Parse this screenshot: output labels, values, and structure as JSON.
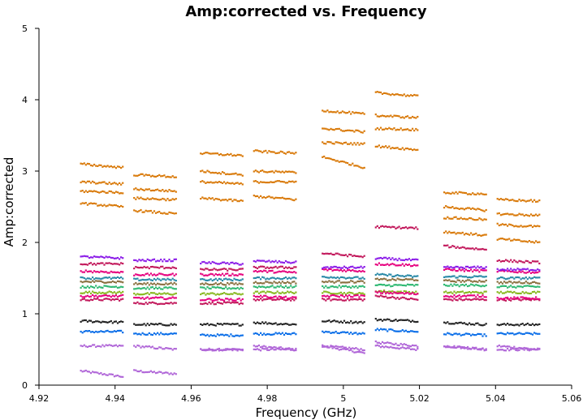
{
  "chart_data": {
    "type": "scatter",
    "title": "Amp:corrected vs. Frequency",
    "xlabel": "Frequency (GHz)",
    "ylabel": "Amp:corrected",
    "xlim": [
      4.92,
      5.06
    ],
    "ylim": [
      0,
      5
    ],
    "xticks": [
      4.92,
      4.94,
      4.96,
      4.98,
      5.0,
      5.02,
      5.04,
      5.06
    ],
    "xtick_labels": [
      "4.92",
      "4.94",
      "4.96",
      "4.98",
      "5",
      "5.02",
      "5.04",
      "5.06"
    ],
    "yticks": [
      0,
      1,
      2,
      3,
      4,
      5
    ],
    "ytick_labels": [
      "0",
      "1",
      "2",
      "3",
      "4",
      "5"
    ],
    "grid": false,
    "spectral_windows": [
      {
        "x_range": [
          4.931,
          4.942
        ]
      },
      {
        "x_range": [
          4.945,
          4.956
        ]
      },
      {
        "x_range": [
          4.9625,
          4.9735
        ]
      },
      {
        "x_range": [
          4.9765,
          4.9875
        ]
      },
      {
        "x_range": [
          4.9945,
          5.0055
        ]
      },
      {
        "x_range": [
          5.0085,
          5.0195
        ]
      },
      {
        "x_range": [
          5.0265,
          5.0375
        ]
      },
      {
        "x_range": [
          5.0405,
          5.0515
        ]
      }
    ],
    "series": [
      {
        "color": "#b066d8",
        "y_levels": [
          [
            0.2,
            0.12
          ],
          [
            0.2,
            0.16
          ],
          [
            0.5,
            0.5
          ],
          [
            0.55,
            0.5
          ],
          [
            0.55,
            0.45
          ],
          [
            0.55,
            0.5
          ],
          [
            0.55,
            0.5
          ],
          [
            0.55,
            0.5
          ]
        ]
      },
      {
        "color": "#b066d8",
        "y_levels": [
          [
            0.55,
            0.55
          ],
          [
            0.55,
            0.5
          ],
          [
            0.5,
            0.5
          ],
          [
            0.5,
            0.5
          ],
          [
            0.55,
            0.5
          ],
          [
            0.6,
            0.55
          ],
          [
            0.55,
            0.5
          ],
          [
            0.5,
            0.5
          ]
        ]
      },
      {
        "color": "#0a6ee8",
        "y_levels": [
          [
            0.75,
            0.75
          ],
          [
            0.72,
            0.72
          ],
          [
            0.7,
            0.7
          ],
          [
            0.72,
            0.72
          ],
          [
            0.75,
            0.72
          ],
          [
            0.78,
            0.75
          ],
          [
            0.72,
            0.7
          ],
          [
            0.72,
            0.72
          ]
        ]
      },
      {
        "color": "#222222",
        "y_levels": [
          [
            0.9,
            0.88
          ],
          [
            0.85,
            0.85
          ],
          [
            0.85,
            0.85
          ],
          [
            0.88,
            0.85
          ],
          [
            0.9,
            0.88
          ],
          [
            0.92,
            0.9
          ],
          [
            0.88,
            0.85
          ],
          [
            0.85,
            0.85
          ]
        ]
      },
      {
        "color": "#c2185b",
        "y_levels": [
          [
            1.2,
            1.2
          ],
          [
            1.15,
            1.15
          ],
          [
            1.15,
            1.15
          ],
          [
            1.2,
            1.2
          ],
          [
            1.2,
            1.2
          ],
          [
            1.25,
            1.2
          ],
          [
            1.2,
            1.2
          ],
          [
            1.2,
            1.2
          ]
        ]
      },
      {
        "color": "#88b820",
        "y_levels": [
          [
            1.3,
            1.3
          ],
          [
            1.28,
            1.28
          ],
          [
            1.28,
            1.28
          ],
          [
            1.3,
            1.3
          ],
          [
            1.3,
            1.28
          ],
          [
            1.32,
            1.3
          ],
          [
            1.3,
            1.3
          ],
          [
            1.3,
            1.3
          ]
        ]
      },
      {
        "color": "#2eb872",
        "y_levels": [
          [
            1.38,
            1.38
          ],
          [
            1.36,
            1.36
          ],
          [
            1.36,
            1.36
          ],
          [
            1.38,
            1.38
          ],
          [
            1.38,
            1.38
          ],
          [
            1.4,
            1.4
          ],
          [
            1.4,
            1.4
          ],
          [
            1.38,
            1.38
          ]
        ]
      },
      {
        "color": "#8a7040",
        "y_levels": [
          [
            1.45,
            1.45
          ],
          [
            1.42,
            1.42
          ],
          [
            1.42,
            1.42
          ],
          [
            1.44,
            1.44
          ],
          [
            1.45,
            1.45
          ],
          [
            1.48,
            1.48
          ],
          [
            1.46,
            1.46
          ],
          [
            1.44,
            1.44
          ]
        ]
      },
      {
        "color": "#2a8aa8",
        "y_levels": [
          [
            1.5,
            1.5
          ],
          [
            1.48,
            1.48
          ],
          [
            1.48,
            1.48
          ],
          [
            1.5,
            1.5
          ],
          [
            1.52,
            1.5
          ],
          [
            1.55,
            1.52
          ],
          [
            1.52,
            1.52
          ],
          [
            1.5,
            1.5
          ]
        ]
      },
      {
        "color": "#e6007e",
        "y_levels": [
          [
            1.6,
            1.58
          ],
          [
            1.55,
            1.55
          ],
          [
            1.55,
            1.55
          ],
          [
            1.6,
            1.58
          ],
          [
            1.62,
            1.6
          ],
          [
            1.7,
            1.68
          ],
          [
            1.62,
            1.6
          ],
          [
            1.6,
            1.58
          ]
        ]
      },
      {
        "color": "#e6007e",
        "y_levels": [
          [
            1.25,
            1.25
          ],
          [
            1.22,
            1.22
          ],
          [
            1.2,
            1.2
          ],
          [
            1.25,
            1.22
          ],
          [
            1.25,
            1.25
          ],
          [
            1.3,
            1.28
          ],
          [
            1.25,
            1.25
          ],
          [
            1.22,
            1.22
          ]
        ]
      },
      {
        "color": "#8b1ce8",
        "y_levels": [
          [
            1.8,
            1.78
          ],
          [
            1.75,
            1.75
          ],
          [
            1.72,
            1.7
          ],
          [
            1.74,
            1.72
          ],
          [
            1.65,
            1.65
          ],
          [
            1.78,
            1.75
          ],
          [
            1.65,
            1.65
          ],
          [
            1.62,
            1.62
          ]
        ]
      },
      {
        "color": "#c2185b",
        "y_levels": [
          [
            1.7,
            1.7
          ],
          [
            1.65,
            1.65
          ],
          [
            1.62,
            1.62
          ],
          [
            1.65,
            1.65
          ],
          [
            1.85,
            1.8
          ],
          [
            2.22,
            2.2
          ],
          [
            1.95,
            1.9
          ],
          [
            1.75,
            1.72
          ]
        ]
      },
      {
        "color": "#d97a0a",
        "y_levels": [
          [
            2.55,
            2.5
          ],
          [
            2.45,
            2.4
          ],
          [
            2.62,
            2.58
          ],
          [
            2.65,
            2.6
          ],
          [
            3.2,
            3.05
          ],
          [
            3.35,
            3.3
          ],
          [
            2.15,
            2.1
          ],
          [
            2.05,
            2.0
          ]
        ]
      },
      {
        "color": "#d97a0a",
        "y_levels": [
          [
            2.72,
            2.7
          ],
          [
            2.62,
            2.6
          ],
          [
            2.85,
            2.82
          ],
          [
            2.85,
            2.85
          ],
          [
            3.4,
            3.38
          ],
          [
            3.6,
            3.58
          ],
          [
            2.35,
            2.32
          ],
          [
            2.25,
            2.22
          ]
        ]
      },
      {
        "color": "#d97a0a",
        "y_levels": [
          [
            2.85,
            2.82
          ],
          [
            2.75,
            2.72
          ],
          [
            3.0,
            2.95
          ],
          [
            3.0,
            2.98
          ],
          [
            3.6,
            3.55
          ],
          [
            3.78,
            3.75
          ],
          [
            2.5,
            2.45
          ],
          [
            2.4,
            2.38
          ]
        ]
      },
      {
        "color": "#d97a0a",
        "y_levels": [
          [
            3.1,
            3.05
          ],
          [
            2.95,
            2.92
          ],
          [
            3.25,
            3.22
          ],
          [
            3.28,
            3.25
          ],
          [
            3.85,
            3.8
          ],
          [
            4.1,
            4.05
          ],
          [
            2.7,
            2.68
          ],
          [
            2.6,
            2.58
          ]
        ]
      }
    ]
  }
}
